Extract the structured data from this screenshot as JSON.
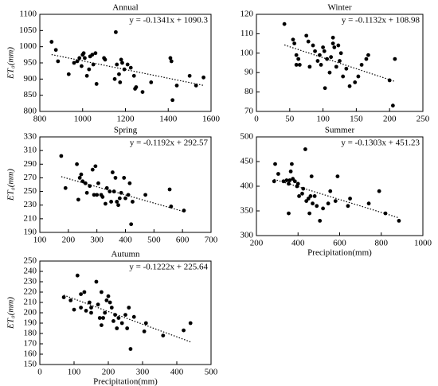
{
  "chart_data": [
    {
      "type": "scatter",
      "title": "Annual",
      "ylabel": "ET₀(mm)",
      "color": "#000000",
      "x": [
        855,
        875,
        885,
        935,
        960,
        975,
        985,
        995,
        1000,
        1005,
        1010,
        1020,
        1030,
        1035,
        1045,
        1050,
        1060,
        1065,
        1100,
        1105,
        1150,
        1155,
        1160,
        1170,
        1175,
        1180,
        1185,
        1195,
        1210,
        1225,
        1240,
        1245,
        1250,
        1280,
        1320,
        1410,
        1415,
        1420,
        1440,
        1500,
        1530,
        1565
      ],
      "values": [
        1015,
        990,
        955,
        915,
        950,
        955,
        965,
        940,
        975,
        980,
        965,
        910,
        930,
        970,
        975,
        945,
        980,
        885,
        965,
        960,
        900,
        1045,
        945,
        915,
        890,
        960,
        950,
        930,
        945,
        935,
        910,
        870,
        875,
        860,
        890,
        965,
        955,
        835,
        880,
        910,
        880,
        905
      ],
      "xlim": [
        800,
        1600
      ],
      "xticks": [
        800,
        1000,
        1200,
        1400,
        1600
      ],
      "ylim": [
        800,
        1100
      ],
      "yticks": [
        800,
        850,
        900,
        950,
        1000,
        1050,
        1100
      ],
      "trendline": {
        "slope": -0.1341,
        "intercept": 1090.3,
        "label": "y = -0.1341x + 1090.3"
      }
    },
    {
      "type": "scatter",
      "title": "Winter",
      "color": "#000000",
      "x": [
        42,
        55,
        57,
        60,
        60,
        63,
        65,
        75,
        78,
        80,
        85,
        88,
        92,
        95,
        97,
        100,
        102,
        103,
        106,
        110,
        112,
        115,
        115,
        117,
        120,
        123,
        125,
        127,
        130,
        135,
        140,
        148,
        153,
        158,
        165,
        168,
        200,
        205,
        208
      ],
      "values": [
        115,
        107,
        105,
        99,
        94,
        97,
        94,
        109,
        106,
        93,
        104,
        101,
        96,
        99,
        94,
        103,
        101,
        82,
        97,
        90,
        98,
        105,
        108,
        103,
        93,
        104,
        96,
        100,
        88,
        92,
        83,
        85,
        88,
        94,
        97,
        99,
        86,
        73,
        97
      ],
      "xlim": [
        0,
        250
      ],
      "xticks": [
        0,
        50,
        100,
        150,
        200,
        250
      ],
      "ylim": [
        70,
        120
      ],
      "yticks": [
        70,
        80,
        90,
        100,
        110,
        120
      ],
      "trendline": {
        "slope": -0.1132,
        "intercept": 108.98,
        "label": "y = -0.1132x + 108.98"
      }
    },
    {
      "type": "scatter",
      "title": "Spring",
      "ylabel": "ET₀(mm)",
      "color": "#000000",
      "x": [
        175,
        190,
        230,
        235,
        240,
        245,
        250,
        260,
        265,
        275,
        285,
        290,
        295,
        300,
        305,
        315,
        320,
        330,
        335,
        345,
        350,
        355,
        360,
        365,
        370,
        375,
        380,
        385,
        395,
        400,
        410,
        415,
        420,
        425,
        470,
        555,
        560,
        605
      ],
      "values": [
        302,
        255,
        290,
        238,
        270,
        275,
        265,
        262,
        248,
        258,
        282,
        245,
        287,
        245,
        262,
        245,
        242,
        232,
        255,
        250,
        235,
        278,
        250,
        270,
        235,
        230,
        240,
        248,
        270,
        240,
        245,
        262,
        202,
        235,
        245,
        253,
        228,
        222
      ],
      "xlim": [
        100,
        700
      ],
      "xticks": [
        100,
        200,
        300,
        400,
        500,
        600,
        700
      ],
      "ylim": [
        190,
        330
      ],
      "yticks": [
        190,
        210,
        230,
        250,
        270,
        290,
        310,
        330
      ],
      "trendline": {
        "slope": -0.1192,
        "intercept": 292.57,
        "label": "y = -0.1192x + 292.57"
      }
    },
    {
      "type": "scatter",
      "title": "Summer",
      "xlabel": "Precipitation(mm)",
      "color": "#000000",
      "x": [
        285,
        290,
        305,
        330,
        345,
        355,
        355,
        360,
        365,
        370,
        375,
        385,
        395,
        400,
        405,
        420,
        425,
        435,
        440,
        450,
        455,
        460,
        465,
        470,
        480,
        490,
        505,
        520,
        545,
        555,
        580,
        590,
        640,
        650,
        740,
        790,
        820,
        885
      ],
      "values": [
        410,
        445,
        425,
        410,
        412,
        405,
        345,
        412,
        430,
        445,
        415,
        410,
        400,
        405,
        380,
        385,
        395,
        475,
        370,
        375,
        345,
        380,
        420,
        365,
        380,
        360,
        330,
        355,
        365,
        390,
        370,
        420,
        360,
        375,
        365,
        390,
        345,
        330
      ],
      "xlim": [
        200,
        1000
      ],
      "xticks": [
        200,
        400,
        600,
        800,
        1000
      ],
      "ylim": [
        300,
        500
      ],
      "yticks": [
        300,
        350,
        400,
        450,
        500
      ],
      "trendline": {
        "slope": -0.1303,
        "intercept": 451.23,
        "label": "y = -0.1303x + 451.23"
      }
    },
    {
      "type": "scatter",
      "title": "Autumn",
      "ylabel": "ET₀(mm)",
      "xlabel": "Precipitation(mm)",
      "color": "#000000",
      "x": [
        70,
        90,
        100,
        110,
        120,
        120,
        130,
        135,
        145,
        150,
        150,
        165,
        170,
        175,
        180,
        180,
        185,
        190,
        195,
        200,
        205,
        210,
        215,
        220,
        225,
        230,
        240,
        250,
        255,
        260,
        265,
        275,
        305,
        310,
        360,
        420,
        440
      ],
      "values": [
        215,
        212,
        203,
        236,
        205,
        218,
        220,
        202,
        210,
        200,
        205,
        230,
        208,
        195,
        220,
        188,
        195,
        200,
        212,
        216,
        210,
        205,
        192,
        198,
        185,
        195,
        190,
        198,
        185,
        205,
        165,
        196,
        182,
        190,
        178,
        183,
        190
      ],
      "xlim": [
        0,
        500
      ],
      "xticks": [
        0,
        100,
        200,
        300,
        400,
        500
      ],
      "ylim": [
        150,
        250
      ],
      "yticks": [
        150,
        160,
        170,
        180,
        190,
        200,
        210,
        220,
        230,
        240,
        250
      ],
      "trendline": {
        "slope": -0.1222,
        "intercept": 225.64,
        "label": "y = -0.1222x + 225.64"
      }
    }
  ]
}
